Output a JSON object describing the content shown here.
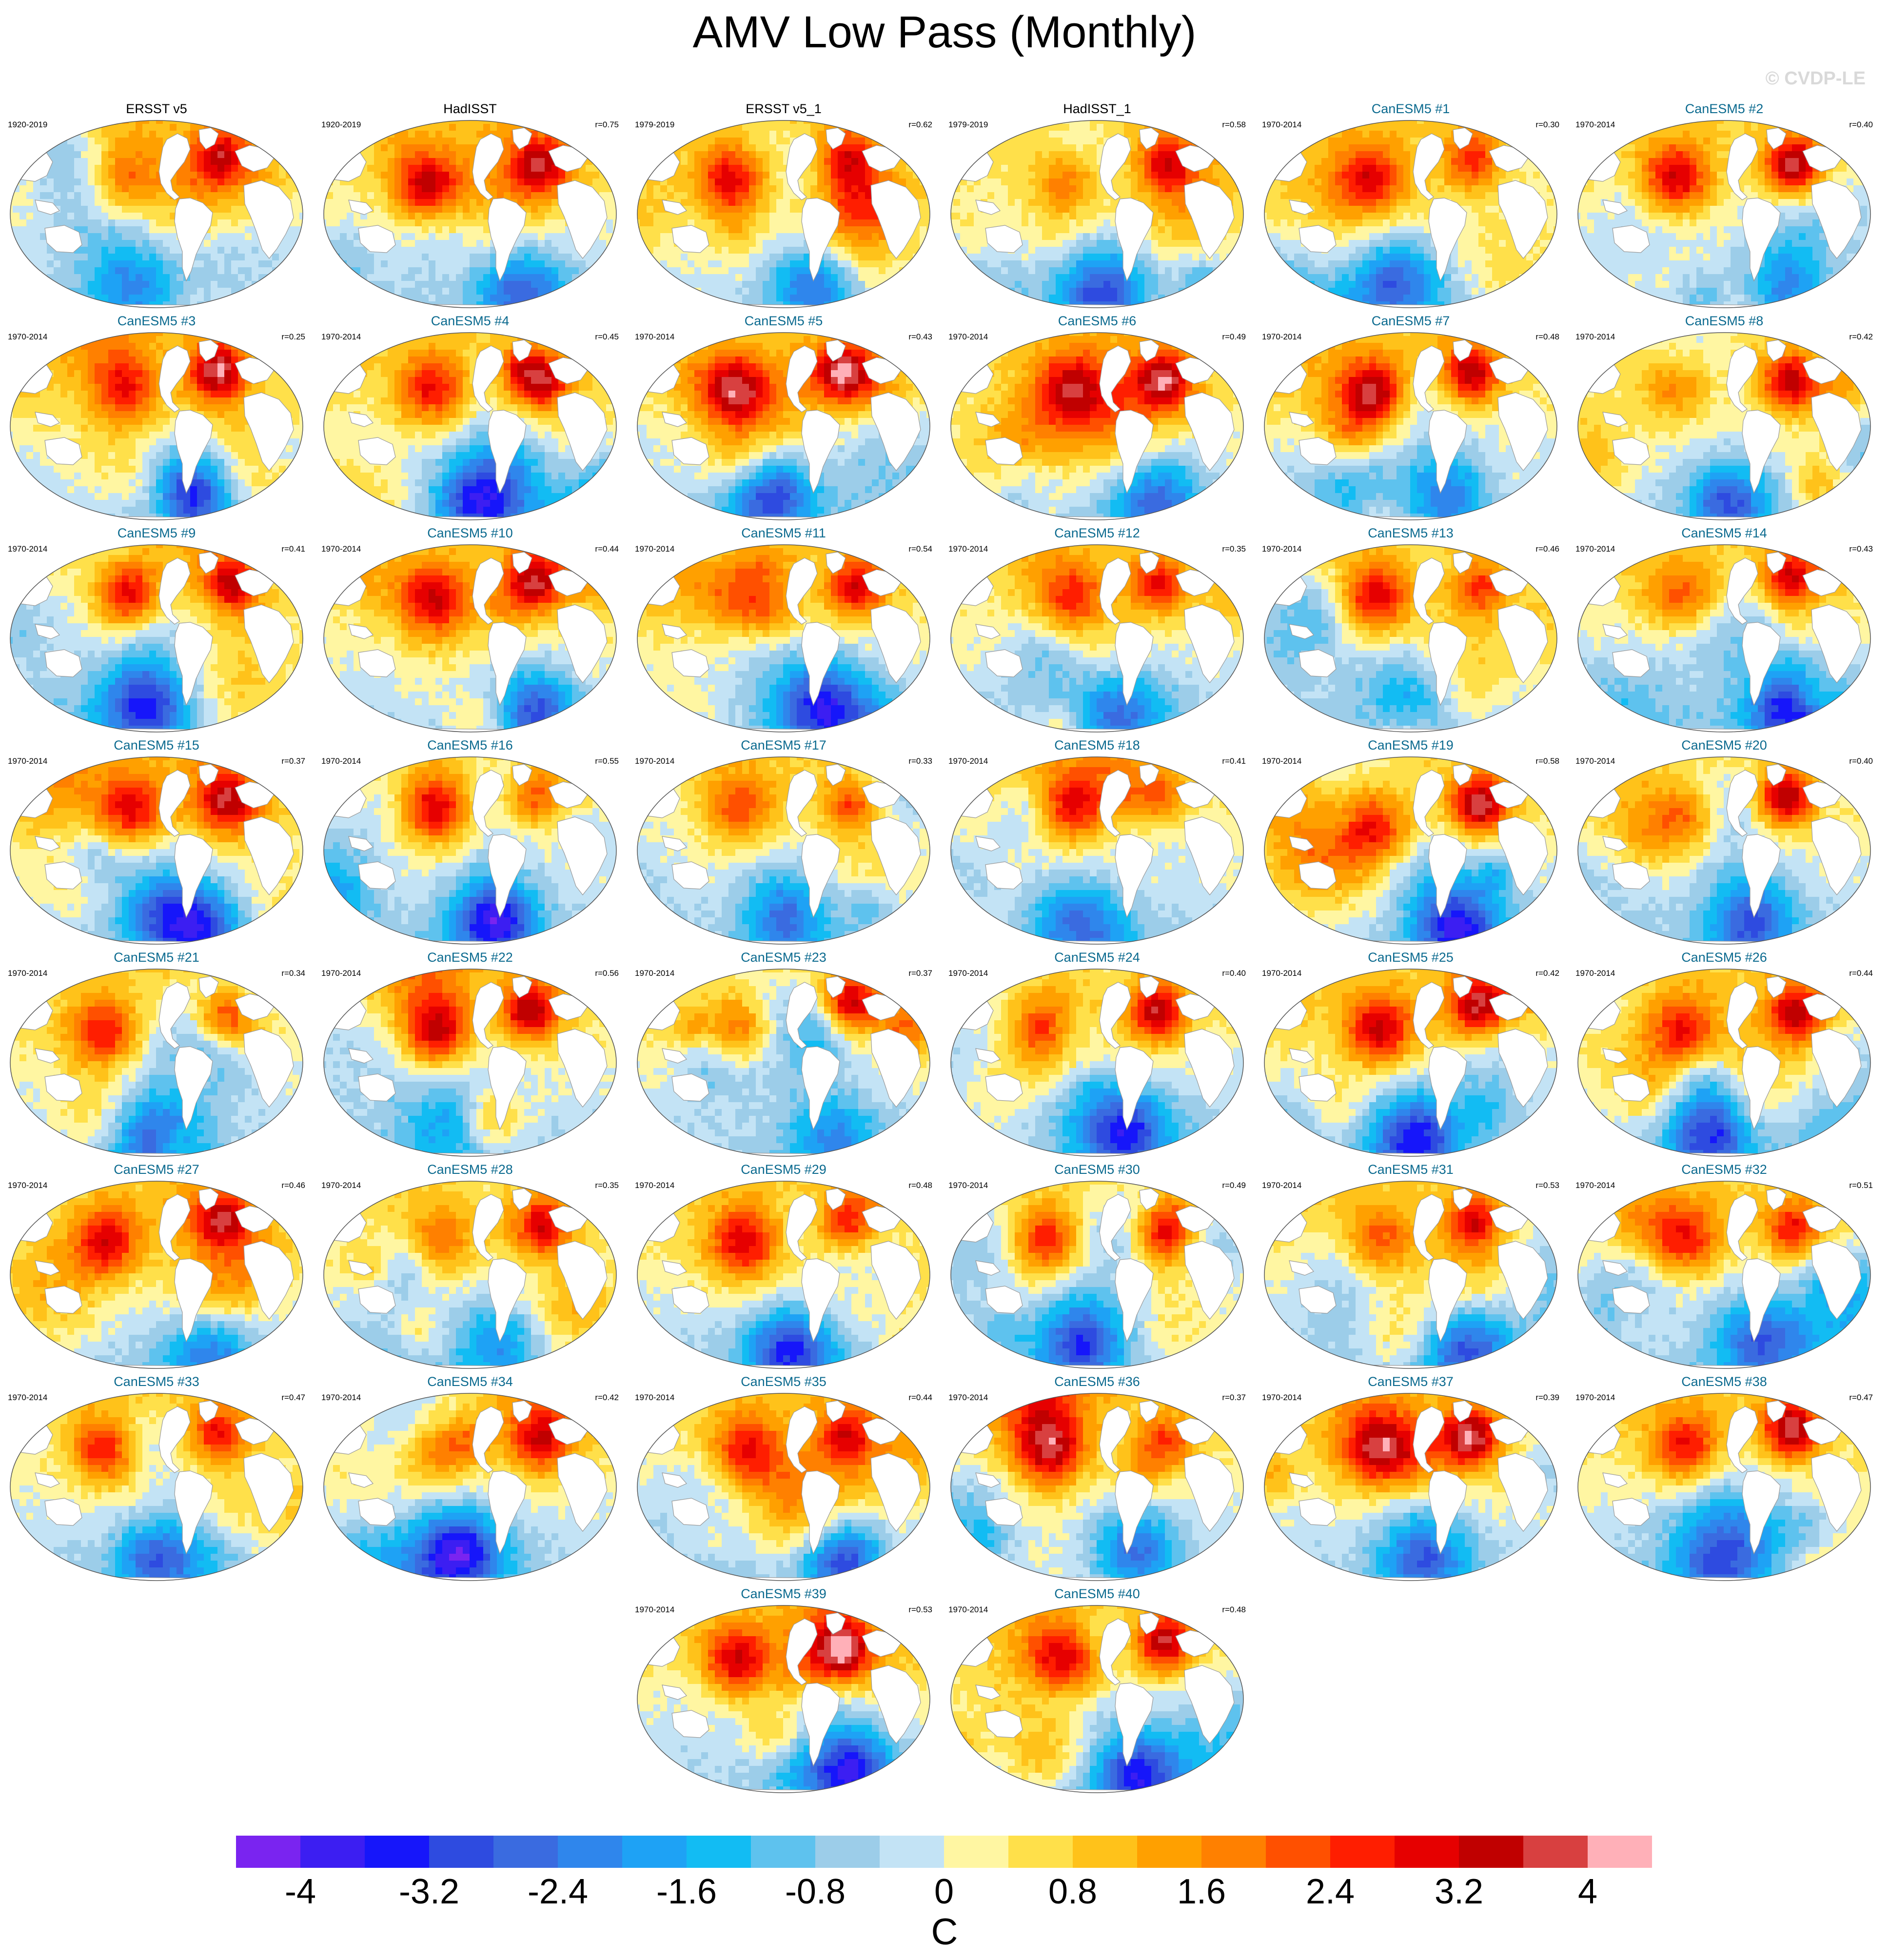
{
  "title": "AMV Low Pass (Monthly)",
  "watermark": "© CVDP-LE",
  "colors": {
    "model_title": "#0b6a8f",
    "obs_title": "#000000",
    "land": "#ffffff",
    "coast": "#999999",
    "palette": [
      "#7a24f0",
      "#3c1ef2",
      "#1616fa",
      "#2e4be0",
      "#3a6be0",
      "#2f86ec",
      "#1ea2f5",
      "#12bcf3",
      "#5ec2ee",
      "#9ccde9",
      "#c3e3f5",
      "#fff6a2",
      "#ffe04a",
      "#ffc21a",
      "#ffa000",
      "#ff8000",
      "#ff5000",
      "#ff1e00",
      "#e60000",
      "#c00000",
      "#d84040",
      "#ffb0b8"
    ]
  },
  "chart_data": {
    "type": "heatmap",
    "title": "AMV Low Pass (Monthly)",
    "colorbar": {
      "unit": "C",
      "levels": [
        -4.4,
        -4,
        -3.6,
        -3.2,
        -2.8,
        -2.4,
        -2,
        -1.6,
        -1.2,
        -0.8,
        -0.4,
        0,
        0.4,
        0.8,
        1.2,
        1.6,
        2,
        2.4,
        2.8,
        3.2,
        3.6,
        4,
        4.4
      ],
      "tick_labels": [
        "-4",
        "-3.2",
        "-2.4",
        "-1.6",
        "-0.8",
        "0",
        "0.8",
        "1.6",
        "2.4",
        "3.2",
        "4"
      ]
    },
    "panels": [
      {
        "title": "ERSST v5",
        "period": "1920-2019",
        "r": "",
        "obs": true
      },
      {
        "title": "HadISST",
        "period": "1920-2019",
        "r": "r=0.75",
        "obs": true
      },
      {
        "title": "ERSST v5_1",
        "period": "1979-2019",
        "r": "r=0.62",
        "obs": true
      },
      {
        "title": "HadISST_1",
        "period": "1979-2019",
        "r": "r=0.58",
        "obs": true
      },
      {
        "title": "CanESM5 #1",
        "period": "1970-2014",
        "r": "r=0.30",
        "obs": false
      },
      {
        "title": "CanESM5 #2",
        "period": "1970-2014",
        "r": "r=0.40",
        "obs": false
      },
      {
        "title": "CanESM5 #3",
        "period": "1970-2014",
        "r": "r=0.25",
        "obs": false
      },
      {
        "title": "CanESM5 #4",
        "period": "1970-2014",
        "r": "r=0.45",
        "obs": false
      },
      {
        "title": "CanESM5 #5",
        "period": "1970-2014",
        "r": "r=0.43",
        "obs": false
      },
      {
        "title": "CanESM5 #6",
        "period": "1970-2014",
        "r": "r=0.49",
        "obs": false
      },
      {
        "title": "CanESM5 #7",
        "period": "1970-2014",
        "r": "r=0.48",
        "obs": false
      },
      {
        "title": "CanESM5 #8",
        "period": "1970-2014",
        "r": "r=0.42",
        "obs": false
      },
      {
        "title": "CanESM5 #9",
        "period": "1970-2014",
        "r": "r=0.41",
        "obs": false
      },
      {
        "title": "CanESM5 #10",
        "period": "1970-2014",
        "r": "r=0.44",
        "obs": false
      },
      {
        "title": "CanESM5 #11",
        "period": "1970-2014",
        "r": "r=0.54",
        "obs": false
      },
      {
        "title": "CanESM5 #12",
        "period": "1970-2014",
        "r": "r=0.35",
        "obs": false
      },
      {
        "title": "CanESM5 #13",
        "period": "1970-2014",
        "r": "r=0.46",
        "obs": false
      },
      {
        "title": "CanESM5 #14",
        "period": "1970-2014",
        "r": "r=0.43",
        "obs": false
      },
      {
        "title": "CanESM5 #15",
        "period": "1970-2014",
        "r": "r=0.37",
        "obs": false
      },
      {
        "title": "CanESM5 #16",
        "period": "1970-2014",
        "r": "r=0.55",
        "obs": false
      },
      {
        "title": "CanESM5 #17",
        "period": "1970-2014",
        "r": "r=0.33",
        "obs": false
      },
      {
        "title": "CanESM5 #18",
        "period": "1970-2014",
        "r": "r=0.41",
        "obs": false
      },
      {
        "title": "CanESM5 #19",
        "period": "1970-2014",
        "r": "r=0.58",
        "obs": false
      },
      {
        "title": "CanESM5 #20",
        "period": "1970-2014",
        "r": "r=0.40",
        "obs": false
      },
      {
        "title": "CanESM5 #21",
        "period": "1970-2014",
        "r": "r=0.34",
        "obs": false
      },
      {
        "title": "CanESM5 #22",
        "period": "1970-2014",
        "r": "r=0.56",
        "obs": false
      },
      {
        "title": "CanESM5 #23",
        "period": "1970-2014",
        "r": "r=0.37",
        "obs": false
      },
      {
        "title": "CanESM5 #24",
        "period": "1970-2014",
        "r": "r=0.40",
        "obs": false
      },
      {
        "title": "CanESM5 #25",
        "period": "1970-2014",
        "r": "r=0.42",
        "obs": false
      },
      {
        "title": "CanESM5 #26",
        "period": "1970-2014",
        "r": "r=0.44",
        "obs": false
      },
      {
        "title": "CanESM5 #27",
        "period": "1970-2014",
        "r": "r=0.46",
        "obs": false
      },
      {
        "title": "CanESM5 #28",
        "period": "1970-2014",
        "r": "r=0.35",
        "obs": false
      },
      {
        "title": "CanESM5 #29",
        "period": "1970-2014",
        "r": "r=0.48",
        "obs": false
      },
      {
        "title": "CanESM5 #30",
        "period": "1970-2014",
        "r": "r=0.49",
        "obs": false
      },
      {
        "title": "CanESM5 #31",
        "period": "1970-2014",
        "r": "r=0.53",
        "obs": false
      },
      {
        "title": "CanESM5 #32",
        "period": "1970-2014",
        "r": "r=0.51",
        "obs": false
      },
      {
        "title": "CanESM5 #33",
        "period": "1970-2014",
        "r": "r=0.47",
        "obs": false
      },
      {
        "title": "CanESM5 #34",
        "period": "1970-2014",
        "r": "r=0.42",
        "obs": false
      },
      {
        "title": "CanESM5 #35",
        "period": "1970-2014",
        "r": "r=0.44",
        "obs": false
      },
      {
        "title": "CanESM5 #36",
        "period": "1970-2014",
        "r": "r=0.37",
        "obs": false
      },
      {
        "title": "CanESM5 #37",
        "period": "1970-2014",
        "r": "r=0.39",
        "obs": false
      },
      {
        "title": "CanESM5 #38",
        "period": "1970-2014",
        "r": "r=0.47",
        "obs": false
      },
      {
        "title": "CanESM5 #39",
        "period": "1970-2014",
        "r": "r=0.53",
        "obs": false
      },
      {
        "title": "CanESM5 #40",
        "period": "1970-2014",
        "r": "r=0.48",
        "obs": false
      }
    ]
  }
}
